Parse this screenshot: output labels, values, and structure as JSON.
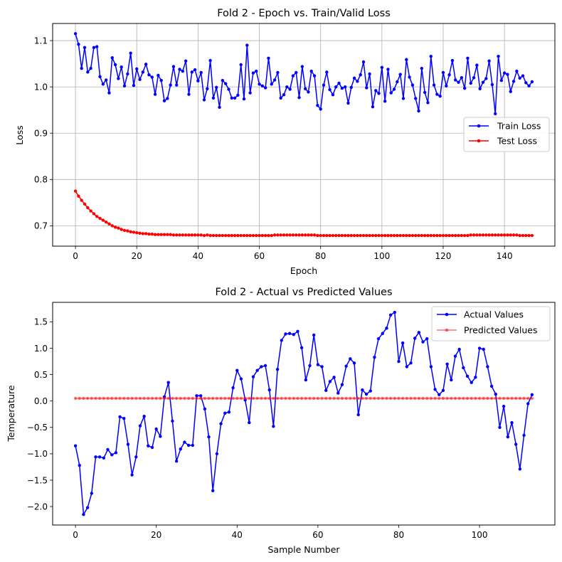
{
  "chart_data": [
    {
      "type": "line",
      "title": "Fold 2 - Epoch vs. Train/Valid Loss",
      "xlabel": "Epoch",
      "ylabel": "Loss",
      "xlim": [
        -7.45,
        156.45
      ],
      "ylim": [
        0.656,
        1.137
      ],
      "xticks": [
        0,
        20,
        40,
        60,
        80,
        100,
        120,
        140
      ],
      "yticks": [
        0.7,
        0.8,
        0.9,
        1.0,
        1.1
      ],
      "xtick_labels": [
        "0",
        "20",
        "40",
        "60",
        "80",
        "100",
        "120",
        "140"
      ],
      "ytick_labels": [
        "0.7",
        "0.8",
        "0.9",
        "1.0",
        "1.1"
      ],
      "grid": true,
      "legend_position": "center-right",
      "series": [
        {
          "name": "Train Loss",
          "color": "#0000ff",
          "values": [
            1.115,
            1.092,
            1.04,
            1.085,
            1.032,
            1.04,
            1.085,
            1.087,
            1.022,
            1.006,
            1.015,
            0.987,
            1.063,
            1.048,
            1.018,
            1.043,
            1.002,
            1.028,
            1.073,
            1.003,
            1.039,
            1.016,
            1.032,
            1.049,
            1.026,
            1.021,
            0.984,
            1.025,
            1.014,
            0.97,
            0.975,
            1.004,
            1.044,
            1.004,
            1.038,
            1.034,
            1.056,
            0.984,
            1.032,
            1.037,
            1.013,
            1.031,
            0.972,
            0.996,
            1.057,
            0.976,
            0.999,
            0.956,
            1.014,
            1.007,
            0.995,
            0.976,
            0.976,
            0.982,
            1.048,
            0.974,
            1.09,
            0.987,
            1.03,
            1.034,
            1.006,
            1.002,
            0.998,
            1.062,
            1.006,
            1.015,
            1.031,
            0.976,
            0.983,
            1.0,
            0.995,
            1.024,
            1.031,
            0.977,
            1.044,
            0.996,
            0.989,
            1.034,
            1.024,
            0.96,
            0.952,
            1.004,
            1.032,
            0.994,
            0.983,
            1.0,
            1.008,
            0.997,
            1.0,
            0.965,
            0.999,
            1.019,
            1.012,
            1.026,
            1.054,
            0.998,
            1.028,
            0.957,
            0.992,
            0.986,
            1.042,
            0.969,
            1.038,
            0.987,
            0.995,
            1.011,
            1.027,
            0.975,
            1.059,
            1.021,
            1.004,
            0.975,
            0.948,
            1.04,
            0.988,
            0.966,
            1.066,
            1.004,
            0.984,
            0.98,
            1.031,
            1.002,
            1.026,
            1.057,
            1.015,
            1.01,
            1.02,
            0.997,
            1.062,
            1.008,
            1.02,
            1.047,
            0.996,
            1.01,
            1.018,
            1.056,
            1.005,
            0.942,
            1.066,
            1.014,
            1.03,
            1.027,
            0.99,
            1.012,
            1.034,
            1.019,
            1.024,
            1.009,
            1.002,
            1.011
          ]
        },
        {
          "name": "Test Loss",
          "color": "#ff0000",
          "values": [
            0.775,
            0.764,
            0.755,
            0.747,
            0.739,
            0.732,
            0.726,
            0.72,
            0.716,
            0.712,
            0.708,
            0.704,
            0.7,
            0.697,
            0.695,
            0.692,
            0.69,
            0.689,
            0.687,
            0.686,
            0.685,
            0.684,
            0.683,
            0.683,
            0.682,
            0.682,
            0.681,
            0.681,
            0.681,
            0.681,
            0.681,
            0.681,
            0.68,
            0.68,
            0.68,
            0.68,
            0.68,
            0.68,
            0.68,
            0.68,
            0.68,
            0.68,
            0.679,
            0.68,
            0.679,
            0.679,
            0.679,
            0.679,
            0.679,
            0.679,
            0.679,
            0.679,
            0.679,
            0.679,
            0.679,
            0.679,
            0.679,
            0.679,
            0.679,
            0.679,
            0.679,
            0.679,
            0.679,
            0.679,
            0.679,
            0.68,
            0.68,
            0.68,
            0.68,
            0.68,
            0.68,
            0.68,
            0.68,
            0.68,
            0.68,
            0.68,
            0.68,
            0.68,
            0.68,
            0.679,
            0.679,
            0.679,
            0.679,
            0.679,
            0.679,
            0.679,
            0.679,
            0.679,
            0.679,
            0.679,
            0.679,
            0.679,
            0.679,
            0.679,
            0.679,
            0.679,
            0.679,
            0.679,
            0.679,
            0.679,
            0.679,
            0.679,
            0.679,
            0.679,
            0.679,
            0.679,
            0.679,
            0.679,
            0.679,
            0.679,
            0.679,
            0.679,
            0.679,
            0.679,
            0.679,
            0.679,
            0.679,
            0.679,
            0.679,
            0.679,
            0.679,
            0.679,
            0.679,
            0.679,
            0.679,
            0.679,
            0.679,
            0.679,
            0.679,
            0.68,
            0.68,
            0.68,
            0.68,
            0.68,
            0.68,
            0.68,
            0.68,
            0.68,
            0.68,
            0.68,
            0.68,
            0.68,
            0.68,
            0.68,
            0.68,
            0.679,
            0.679,
            0.679,
            0.679,
            0.679
          ]
        }
      ]
    },
    {
      "type": "line",
      "title": "Fold 2 - Actual vs Predicted Values",
      "xlabel": "Sample Number",
      "ylabel": "Temperature",
      "xlim": [
        -5.65,
        118.65
      ],
      "ylim": [
        -2.35,
        1.87
      ],
      "xticks": [
        0,
        20,
        40,
        60,
        80,
        100
      ],
      "yticks": [
        -2.0,
        -1.5,
        -1.0,
        -0.5,
        0.0,
        0.5,
        1.0,
        1.5
      ],
      "xtick_labels": [
        "0",
        "20",
        "40",
        "60",
        "80",
        "100"
      ],
      "ytick_labels": [
        "−2.0",
        "−1.5",
        "−1.0",
        "−0.5",
        "0.0",
        "0.5",
        "1.0",
        "1.5"
      ],
      "grid": false,
      "legend_position": "top-right",
      "series": [
        {
          "name": "Actual Values",
          "color": "#0000ff",
          "values": [
            -0.85,
            -1.22,
            -2.15,
            -2.02,
            -1.75,
            -1.06,
            -1.06,
            -1.08,
            -0.92,
            -1.02,
            -0.98,
            -0.3,
            -0.33,
            -0.82,
            -1.4,
            -1.06,
            -0.47,
            -0.29,
            -0.85,
            -0.88,
            -0.53,
            -0.67,
            0.08,
            0.35,
            -0.38,
            -1.14,
            -0.91,
            -0.78,
            -0.84,
            -0.84,
            0.1,
            0.1,
            -0.15,
            -0.68,
            -1.7,
            -1.0,
            -0.43,
            -0.23,
            -0.21,
            0.25,
            0.58,
            0.42,
            0.02,
            -0.41,
            0.46,
            0.58,
            0.65,
            0.67,
            0.21,
            -0.48,
            0.6,
            1.15,
            1.27,
            1.28,
            1.26,
            1.32,
            1.01,
            0.4,
            0.67,
            1.25,
            0.69,
            0.65,
            0.2,
            0.37,
            0.45,
            0.15,
            0.31,
            0.66,
            0.8,
            0.72,
            -0.26,
            0.21,
            0.13,
            0.19,
            0.83,
            1.18,
            1.28,
            1.38,
            1.63,
            1.68,
            0.75,
            1.1,
            0.65,
            0.72,
            1.19,
            1.3,
            1.12,
            1.18,
            0.65,
            0.22,
            0.12,
            0.2,
            0.7,
            0.4,
            0.85,
            0.98,
            0.63,
            0.47,
            0.35,
            0.45,
            1.0,
            0.98,
            0.65,
            0.28,
            0.13,
            -0.5,
            -0.1,
            -0.68,
            -0.41,
            -0.82,
            -1.29,
            -0.65,
            -0.05,
            0.12
          ]
        },
        {
          "name": "Predicted Values",
          "color": "#ff0000",
          "value_all": 0.05,
          "count": 114
        }
      ]
    }
  ]
}
